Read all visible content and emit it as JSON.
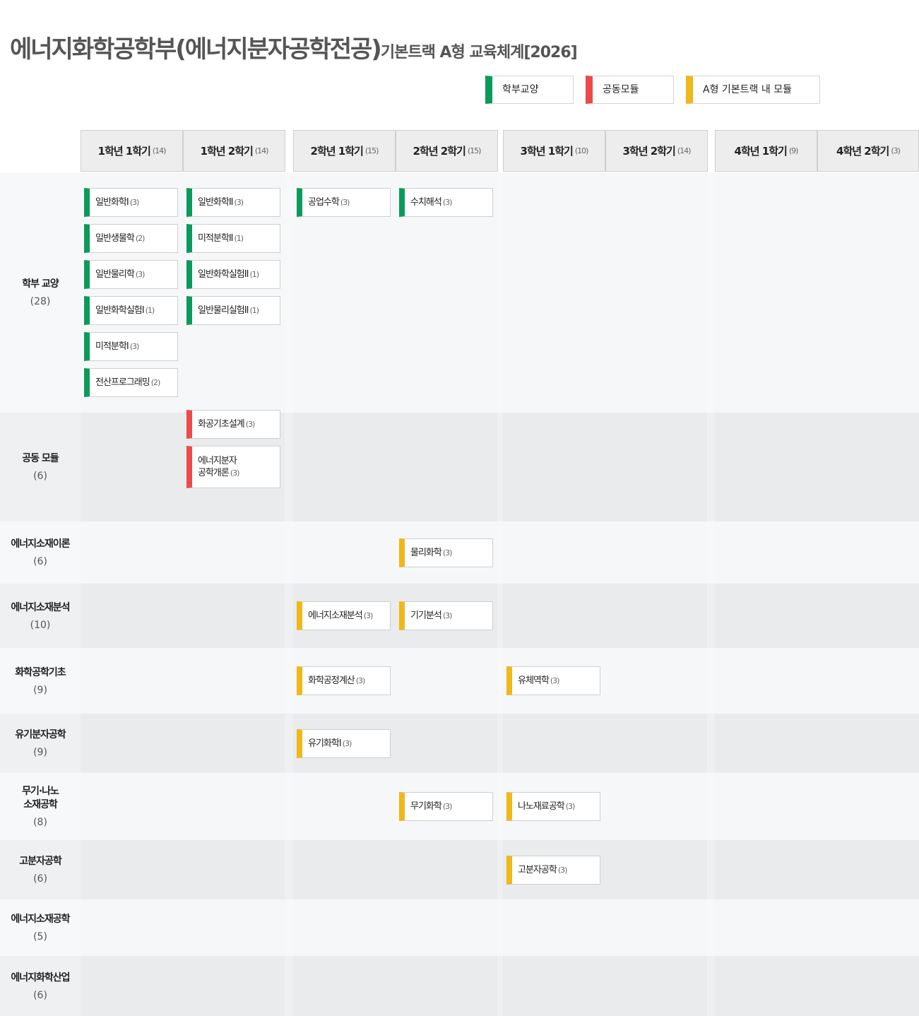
{
  "title": {
    "main": "에너지화학공학부(에너지분자공학전공)",
    "sub": "기본트랙 A형 교육체계[2026]"
  },
  "colors": {
    "green": "#0a9a5c",
    "red": "#ec4a4a",
    "yellow": "#f0b818",
    "band_light": "#f7f8f9",
    "band_dark": "#eef0f2",
    "col_light": "#f6f7f8",
    "col_dark": "#e9ebed"
  },
  "legend": [
    {
      "label": "학부교양",
      "color": "green"
    },
    {
      "label": "공동모듈",
      "color": "red"
    },
    {
      "label": "A형 기본트랙 내 모듈",
      "color": "yellow"
    }
  ],
  "semesters": [
    {
      "label": "1학년 1학기",
      "credits": "(14)"
    },
    {
      "label": "1학년 2학기",
      "credits": "(14)"
    },
    {
      "label": "2학년 1학기",
      "credits": "(15)"
    },
    {
      "label": "2학년 2학기",
      "credits": "(15)"
    },
    {
      "label": "3학년 1학기",
      "credits": "(10)"
    },
    {
      "label": "3학년 2학기",
      "credits": "(14)"
    },
    {
      "label": "4학년 1학기",
      "credits": "(9)"
    },
    {
      "label": "4학년 2학기",
      "credits": "(3)"
    }
  ],
  "rows": [
    {
      "name": "학부 교양",
      "credits": "(28)"
    },
    {
      "name": "공동 모듈",
      "credits": "(6)"
    },
    {
      "name": "에너지소재이론",
      "credits": "(6)"
    },
    {
      "name": "에너지소재분석",
      "credits": "(10)"
    },
    {
      "name": "화학공학기초",
      "credits": "(9)"
    },
    {
      "name": "유기분자공학",
      "credits": "(9)"
    },
    {
      "name": "무기·나노\n소재공학",
      "credits": "(8)"
    },
    {
      "name": "고분자공학",
      "credits": "(6)"
    },
    {
      "name": "에너지소재공학",
      "credits": "(5)"
    },
    {
      "name": "에너지화학산업",
      "credits": "(6)"
    }
  ],
  "courses": [
    {
      "name": "일반화학I",
      "credits": "(3)",
      "color": "green",
      "row": 0,
      "sem": 0,
      "slot": 0
    },
    {
      "name": "일반생물학",
      "credits": "(2)",
      "color": "green",
      "row": 0,
      "sem": 0,
      "slot": 1
    },
    {
      "name": "일반물리학",
      "credits": "(3)",
      "color": "green",
      "row": 0,
      "sem": 0,
      "slot": 2
    },
    {
      "name": "일반화학실험I",
      "credits": "(1)",
      "color": "green",
      "row": 0,
      "sem": 0,
      "slot": 3
    },
    {
      "name": "미적분학I",
      "credits": "(3)",
      "color": "green",
      "row": 0,
      "sem": 0,
      "slot": 4
    },
    {
      "name": "전산프로그래밍",
      "credits": "(2)",
      "color": "green",
      "row": 0,
      "sem": 0,
      "slot": 5
    },
    {
      "name": "일반화학II",
      "credits": "(3)",
      "color": "green",
      "row": 0,
      "sem": 1,
      "slot": 0
    },
    {
      "name": "미적분학II",
      "credits": "(1)",
      "color": "green",
      "row": 0,
      "sem": 1,
      "slot": 1
    },
    {
      "name": "일반화학실험II",
      "credits": "(1)",
      "color": "green",
      "row": 0,
      "sem": 1,
      "slot": 2
    },
    {
      "name": "일반물리실험II",
      "credits": "(1)",
      "color": "green",
      "row": 0,
      "sem": 1,
      "slot": 3
    },
    {
      "name": "공업수학",
      "credits": "(3)",
      "color": "green",
      "row": 0,
      "sem": 2,
      "slot": 0
    },
    {
      "name": "수치해석",
      "credits": "(3)",
      "color": "green",
      "row": 0,
      "sem": 3,
      "slot": 0
    },
    {
      "name": "화공기초설계",
      "credits": "(3)",
      "color": "red",
      "row": 1,
      "sem": 1,
      "slot": 0
    },
    {
      "name": "에너지분자\n공학개론",
      "credits": "(3)",
      "color": "red",
      "row": 1,
      "sem": 1,
      "slot": 1,
      "tall": true
    },
    {
      "name": "물리화학",
      "credits": "(3)",
      "color": "yellow",
      "row": 2,
      "sem": 3,
      "slot": 0
    },
    {
      "name": "에너지소재분석",
      "credits": "(3)",
      "color": "yellow",
      "row": 3,
      "sem": 2,
      "slot": 0
    },
    {
      "name": "기기분석",
      "credits": "(3)",
      "color": "yellow",
      "row": 3,
      "sem": 3,
      "slot": 0
    },
    {
      "name": "화학공정계산",
      "credits": "(3)",
      "color": "yellow",
      "row": 4,
      "sem": 2,
      "slot": 0
    },
    {
      "name": "유체역학",
      "credits": "(3)",
      "color": "yellow",
      "row": 4,
      "sem": 4,
      "slot": 0
    },
    {
      "name": "유기화학I",
      "credits": "(3)",
      "color": "yellow",
      "row": 5,
      "sem": 2,
      "slot": 0
    },
    {
      "name": "무기화학",
      "credits": "(3)",
      "color": "yellow",
      "row": 6,
      "sem": 3,
      "slot": 0
    },
    {
      "name": "나노재료공학",
      "credits": "(3)",
      "color": "yellow",
      "row": 6,
      "sem": 4,
      "slot": 0
    },
    {
      "name": "고분자공학",
      "credits": "(3)",
      "color": "yellow",
      "row": 7,
      "sem": 4,
      "slot": 0
    }
  ]
}
